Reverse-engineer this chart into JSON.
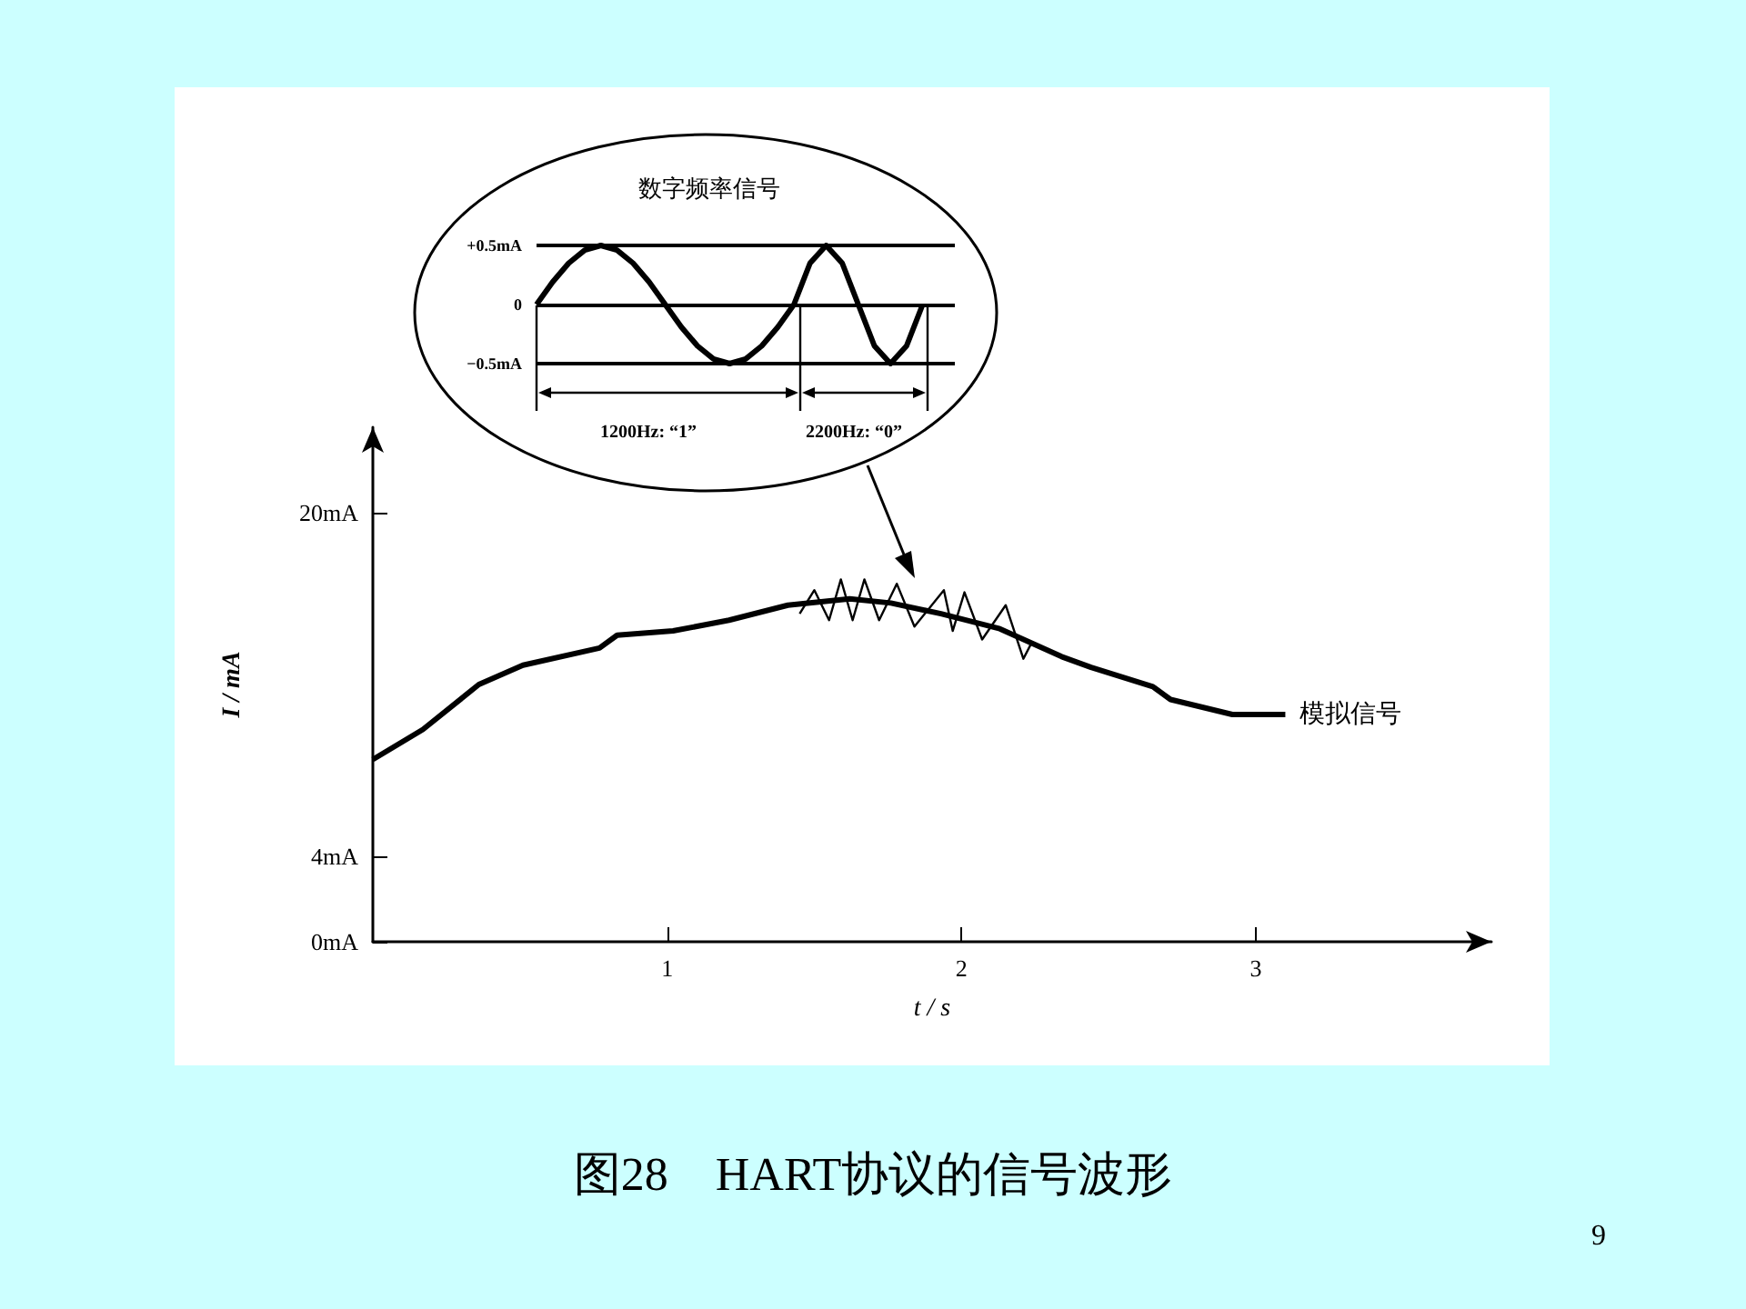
{
  "chart_data": [
    {
      "type": "line",
      "title": "图28　HART协议的信号波形",
      "xlabel": "t / s",
      "ylabel": "I / mA",
      "annotations": [
        "9"
      ],
      "marker": "none",
      "xlim": [
        0,
        3.8
      ],
      "ylim": [
        0,
        24
      ],
      "xticks": [
        1,
        2,
        3
      ],
      "yticks": [
        {
          "value": 0,
          "label": "0mA"
        },
        {
          "value": 4,
          "label": "4mA"
        },
        {
          "value": 20,
          "label": "20mA"
        }
      ],
      "series": [
        {
          "name": "模拟信号",
          "color": "#000000",
          "x": [
            0,
            0.17,
            0.36,
            0.51,
            0.77,
            0.83,
            1.02,
            1.21,
            1.41,
            1.62,
            1.76,
            1.93,
            2.13,
            2.34,
            2.44,
            2.65,
            2.71,
            2.92,
            3.1
          ],
          "values": [
            8.5,
            9.9,
            12.0,
            12.9,
            13.7,
            14.3,
            14.5,
            15.0,
            15.7,
            16.0,
            15.8,
            15.3,
            14.6,
            13.3,
            12.8,
            11.9,
            11.3,
            10.6,
            10.6
          ]
        },
        {
          "color": "#000000",
          "x": [
            1.45,
            1.5,
            1.55,
            1.59,
            1.63,
            1.67,
            1.72,
            1.78,
            1.84,
            1.94,
            1.97,
            2.01,
            2.07,
            2.15,
            2.21,
            2.24
          ],
          "values": [
            15.3,
            16.4,
            15.0,
            16.9,
            15.0,
            16.9,
            15.0,
            16.7,
            14.7,
            16.4,
            14.5,
            16.3,
            14.1,
            15.7,
            13.2,
            14.0
          ]
        }
      ]
    },
    {
      "type": "line",
      "title": "数字频率信号",
      "annotations": [
        "1200Hz: “1”",
        "2200Hz: “0”"
      ],
      "marker": "none",
      "ref_lines": [
        {
          "axis": "y",
          "value": 0.5,
          "color": "#000000"
        },
        {
          "axis": "y",
          "value": 0,
          "color": "#000000"
        },
        {
          "axis": "y",
          "value": -0.5,
          "color": "#000000"
        }
      ],
      "tick_labels": "y",
      "ylim": [
        -0.5,
        0.5
      ],
      "yticks": [
        {
          "value": 0.5,
          "label": "+0.5mA"
        },
        0,
        {
          "value": -0.5,
          "label": "−0.5mA"
        }
      ],
      "categories": [
        null,
        null,
        null,
        null,
        null,
        null,
        null,
        null,
        null,
        null,
        null,
        null,
        null,
        null,
        null,
        null,
        null,
        null,
        null,
        null,
        null,
        null,
        null,
        null,
        null,
        null,
        null
      ],
      "series": [
        {
          "color": "#000000",
          "values": [
            0,
            0.19,
            0.35,
            0.46,
            0.5,
            0.46,
            0.35,
            0.19,
            0,
            -0.19,
            -0.35,
            -0.46,
            -0.5,
            -0.46,
            -0.35,
            -0.19,
            0,
            0.35,
            0.5,
            0.35,
            0,
            -0.35,
            -0.5,
            -0.35,
            0,
            null,
            null
          ]
        }
      ]
    }
  ]
}
